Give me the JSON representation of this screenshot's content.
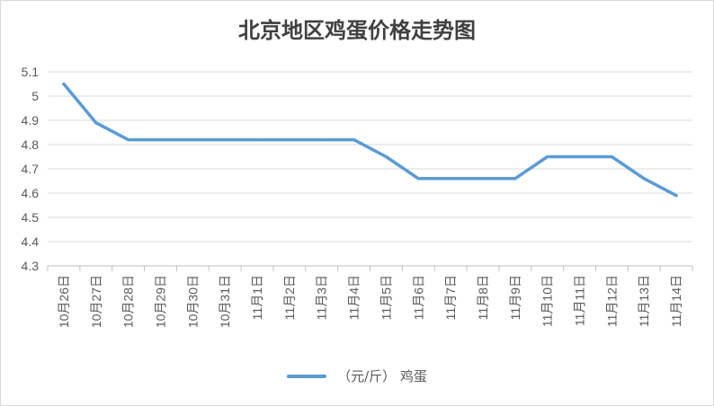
{
  "chart_data": {
    "type": "line",
    "title": "北京地区鸡蛋价格走势图",
    "categories": [
      "10月26日",
      "10月27日",
      "10月28日",
      "10月29日",
      "10月30日",
      "10月31日",
      "11月1日",
      "11月2日",
      "11月3日",
      "11月4日",
      "11月5日",
      "11月6日",
      "11月7日",
      "11月8日",
      "11月9日",
      "11月10日",
      "11月11日",
      "11月12日",
      "11月13日",
      "11月14日"
    ],
    "series": [
      {
        "name": "（元/斤） 鸡蛋",
        "values": [
          5.05,
          4.89,
          4.82,
          4.82,
          4.82,
          4.82,
          4.82,
          4.82,
          4.82,
          4.82,
          4.75,
          4.66,
          4.66,
          4.66,
          4.66,
          4.75,
          4.75,
          4.75,
          4.66,
          4.59
        ],
        "color": "#5b9bd5"
      }
    ],
    "yticks": [
      "4.3",
      "4.4",
      "4.5",
      "4.6",
      "4.7",
      "4.8",
      "4.9",
      "5",
      "5.1"
    ],
    "ylim": [
      4.3,
      5.1
    ],
    "grid": true,
    "legend_position": "bottom",
    "xlabel": "",
    "ylabel": ""
  }
}
